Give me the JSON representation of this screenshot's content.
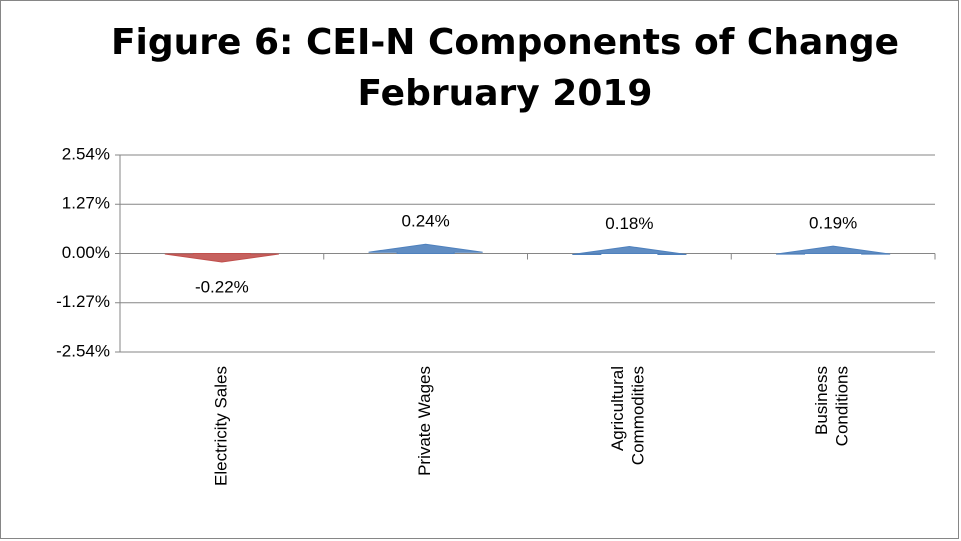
{
  "chart_data": {
    "type": "arrow-bar",
    "title": "Figure 6: CEI-N Components of Change",
    "subtitle": "February 2019",
    "categories": [
      "Electricity Sales",
      "Private Wages",
      "Agricultural Commodities",
      "Business Conditions"
    ],
    "values": [
      -0.22,
      0.24,
      0.18,
      0.19
    ],
    "value_labels": [
      "-0.22%",
      "0.24%",
      "0.18%",
      "0.19%"
    ],
    "colors": [
      "#c0504d",
      "#4f81bd",
      "#4f81bd",
      "#4f81bd"
    ],
    "ylim": [
      -2.54,
      2.54
    ],
    "yticks": [
      {
        "value": -2.54,
        "label": "-2.54%"
      },
      {
        "value": -1.27,
        "label": "-1.27%"
      },
      {
        "value": 0,
        "label": "0.00%"
      },
      {
        "value": 1.27,
        "label": "1.27%"
      },
      {
        "value": 2.54,
        "label": "2.54%"
      }
    ],
    "grid": true
  }
}
